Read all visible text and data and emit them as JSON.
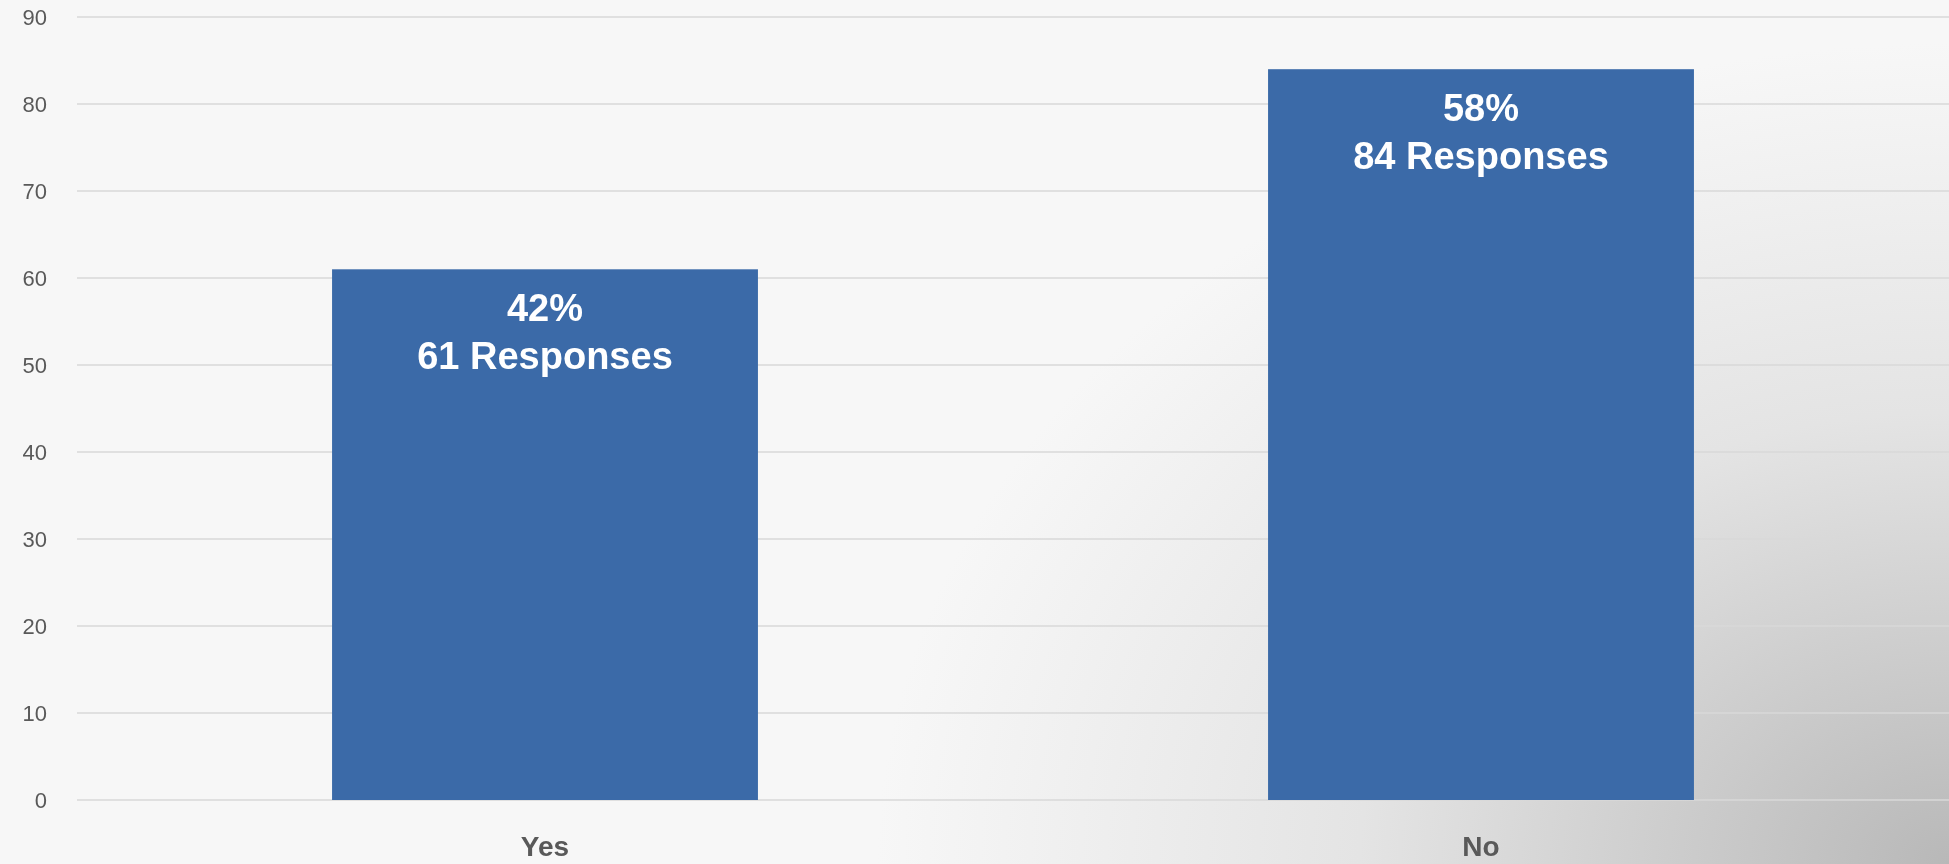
{
  "chart_data": {
    "type": "bar",
    "categories": [
      "Yes",
      "No"
    ],
    "values": [
      61,
      84
    ],
    "color": "#3b6aa8",
    "value_labels": [
      "42%\n61 Responses",
      "58%\n84 Responses"
    ],
    "ylim": [
      0,
      90
    ],
    "yticks": [
      0,
      10,
      20,
      30,
      40,
      50,
      60,
      70,
      80,
      90
    ],
    "grid": "y"
  }
}
